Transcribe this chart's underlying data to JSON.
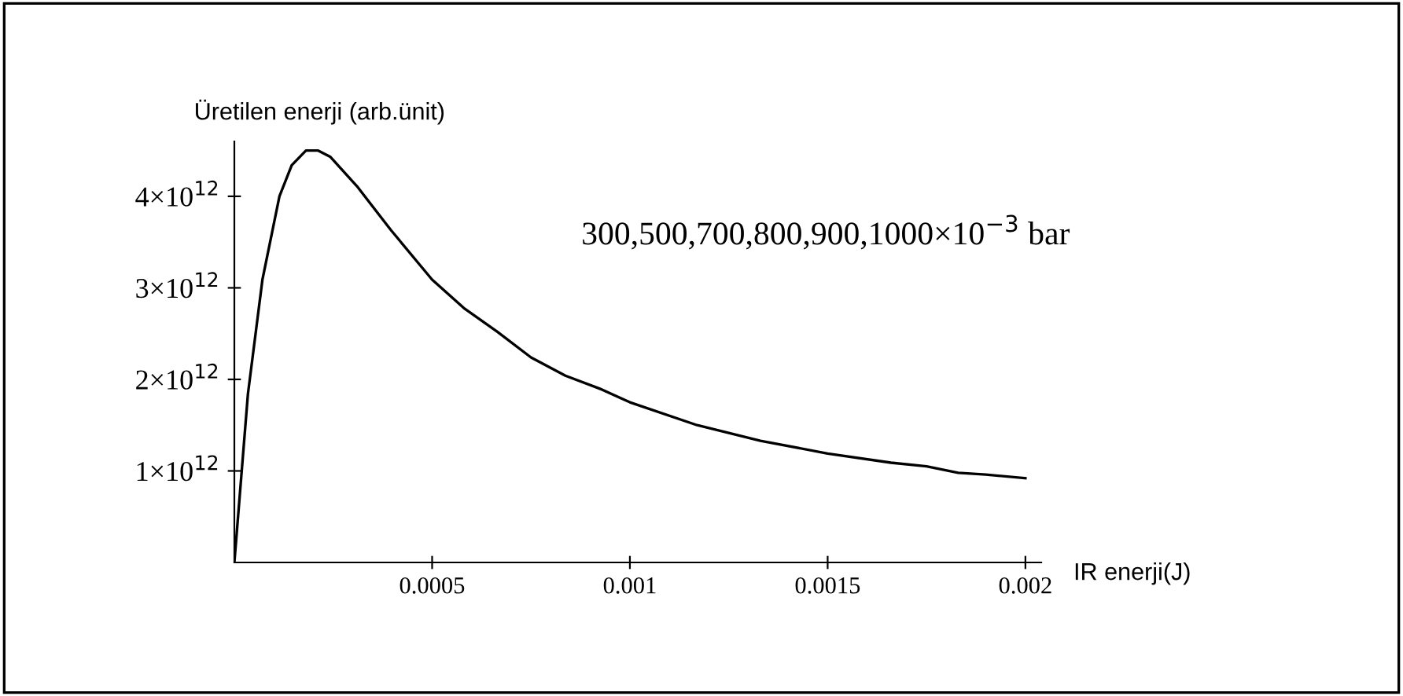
{
  "chart_data": {
    "type": "line",
    "ylabel": "Üretilen enerji (arb.ünit)",
    "xlabel": "IR enerji(J)",
    "annotations": [
      "300,500,700,800,900,1000×10$^{−3}$ bar"
    ],
    "x": [
      0,
      3.43e-05,
      7.1e-05,
      0.000114,
      0.000145,
      0.000181,
      0.000212,
      0.000243,
      0.00031,
      0.000396,
      0.0005,
      0.00058,
      0.000665,
      0.00075,
      0.000837,
      0.000923,
      0.001,
      0.00117,
      0.00133,
      0.0015,
      0.00166,
      0.00175,
      0.00183,
      0.0019,
      0.002
    ],
    "series": [
      {
        "color": "#000000",
        "values": [
          0,
          1840000000000.0,
          3090000000000.0,
          4000000000000.0,
          4340000000000.0,
          4500000000000.0,
          4500000000000.0,
          4430000000000.0,
          4110000000000.0,
          3630000000000.0,
          3090000000000.0,
          2780000000000.0,
          2520000000000.0,
          2240000000000.0,
          2040000000000.0,
          1900000000000.0,
          1750000000000.0,
          1500000000000.0,
          1330000000000.0,
          1190000000000.0,
          1090000000000.0,
          1050000000000.0,
          980000000000.0,
          960000000000.0,
          920000000000.0
        ]
      }
    ],
    "xlim": [
      0,
      0.00204
    ],
    "ylim": [
      0,
      4600000000000.0
    ],
    "xticks": [
      0.0005,
      0.001,
      0.0015,
      0.002
    ],
    "yticks": [
      {
        "value": 1000000000000.0,
        "label": "1×10$^{12}$"
      },
      {
        "value": 2000000000000.0,
        "label": "2×10$^{12}$"
      },
      {
        "value": 3000000000000.0,
        "label": "3×10$^{12}$"
      },
      {
        "value": 4000000000000.0,
        "label": "4×10$^{12}$"
      }
    ],
    "grid": false,
    "marker": "none",
    "line_style": "solid"
  }
}
